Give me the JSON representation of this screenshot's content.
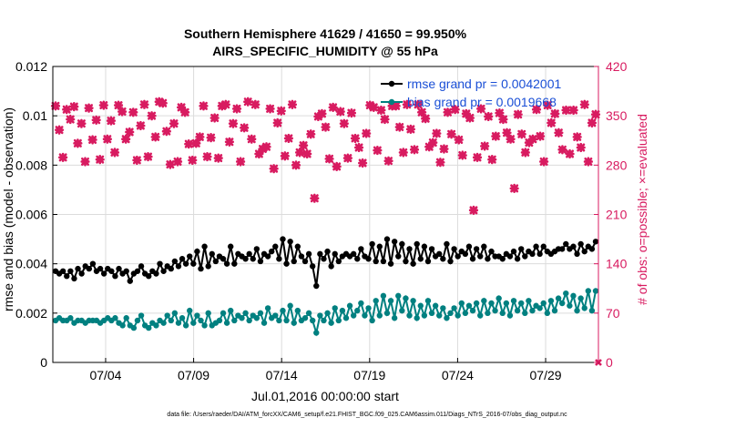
{
  "chart_data": {
    "type": "line",
    "title": "Southern Hemisphere 41629 / 41650 = 99.950%",
    "subtitle": "AIRS_SPECIFIC_HUMIDITY @ 55 hPa",
    "xlabel": "Jul.01,2016 00:00:00 start",
    "ylabel": "rmse and bias (model - observation)",
    "y2label": "# of obs: o=possible; ×=evaluated",
    "footer": "data file: /Users/raeder/DAI/ATM_forcXX/CAM6_setup/f.e21.FHIST_BGC.f09_025.CAM6assim.011/Diags_NTrS_2016-07/obs_diag_output.nc",
    "x_ticks": [
      "07/04",
      "07/09",
      "07/14",
      "07/19",
      "07/24",
      "07/29"
    ],
    "x_tick_days": [
      4,
      9,
      14,
      19,
      24,
      29
    ],
    "xlim_days": [
      1,
      32
    ],
    "ylim": [
      0,
      0.012
    ],
    "y_ticks": [
      "0",
      "0.002",
      "0.004",
      "0.006",
      "0.008",
      "0.01",
      "0.012"
    ],
    "y2lim": [
      0,
      420
    ],
    "y2_ticks": [
      "0",
      "70",
      "140",
      "210",
      "280",
      "350",
      "420"
    ],
    "grid": true,
    "legend_position": "top-right",
    "colors": {
      "rmse": "#000000",
      "bias": "#008080",
      "obs": "#d81b60",
      "legend_text": "#1a4fd6",
      "y2axis": "#d81b60"
    },
    "series": [
      {
        "name": "rmse grand pr = 0.0042001",
        "key": "rmse",
        "axis": "left",
        "values": [
          0.0037,
          0.0036,
          0.0037,
          0.0035,
          0.0037,
          0.0034,
          0.0038,
          0.0036,
          0.0039,
          0.0038,
          0.004,
          0.0037,
          0.0038,
          0.0036,
          0.0038,
          0.0037,
          0.0035,
          0.0038,
          0.0036,
          0.0037,
          0.0033,
          0.0036,
          0.0037,
          0.0039,
          0.0036,
          0.0035,
          0.0037,
          0.0036,
          0.004,
          0.0037,
          0.0039,
          0.0038,
          0.0041,
          0.0039,
          0.0042,
          0.004,
          0.0043,
          0.004,
          0.0045,
          0.0038,
          0.0047,
          0.0039,
          0.0044,
          0.0041,
          0.0043,
          0.0042,
          0.004,
          0.0047,
          0.004,
          0.0044,
          0.0043,
          0.0042,
          0.0044,
          0.0042,
          0.0046,
          0.0041,
          0.0044,
          0.0043,
          0.0045,
          0.0047,
          0.0042,
          0.005,
          0.004,
          0.0049,
          0.0041,
          0.0047,
          0.0043,
          0.0041,
          0.0044,
          0.0039,
          0.0031,
          0.0044,
          0.0042,
          0.0045,
          0.0039,
          0.0044,
          0.0041,
          0.0043,
          0.0044,
          0.0043,
          0.0044,
          0.0042,
          0.0046,
          0.0043,
          0.0042,
          0.0048,
          0.0041,
          0.0047,
          0.0041,
          0.005,
          0.004,
          0.0049,
          0.0043,
          0.0048,
          0.0041,
          0.0046,
          0.004,
          0.0048,
          0.0042,
          0.0047,
          0.0041,
          0.0046,
          0.0043,
          0.0044,
          0.0042,
          0.0048,
          0.0041,
          0.0046,
          0.0043,
          0.0045,
          0.0044,
          0.0047,
          0.0042,
          0.0046,
          0.0043,
          0.0047,
          0.0042,
          0.0045,
          0.0043,
          0.0043,
          0.0042,
          0.0044,
          0.0043,
          0.0045,
          0.0042,
          0.0046,
          0.0043,
          0.0045,
          0.0044,
          0.0047,
          0.0044,
          0.0047,
          0.0045,
          0.0044,
          0.0045,
          0.0046,
          0.0046,
          0.0048,
          0.0046,
          0.0047,
          0.0044,
          0.0048,
          0.0045,
          0.0047,
          0.0046,
          0.0049
        ]
      },
      {
        "name": "bias grand pr = 0.0019668",
        "key": "bias",
        "axis": "left",
        "values": [
          0.0017,
          0.0018,
          0.0017,
          0.0017,
          0.0018,
          0.0016,
          0.0017,
          0.0017,
          0.0016,
          0.0017,
          0.0017,
          0.0017,
          0.0016,
          0.0017,
          0.0018,
          0.0017,
          0.0018,
          0.0016,
          0.0015,
          0.0018,
          0.0015,
          0.0014,
          0.0017,
          0.0019,
          0.0015,
          0.0014,
          0.0016,
          0.0015,
          0.0017,
          0.0016,
          0.0019,
          0.0017,
          0.002,
          0.0016,
          0.0018,
          0.0015,
          0.0021,
          0.0016,
          0.0019,
          0.0017,
          0.0015,
          0.002,
          0.0015,
          0.0016,
          0.0017,
          0.002,
          0.0016,
          0.0021,
          0.0017,
          0.0019,
          0.0018,
          0.002,
          0.0017,
          0.0019,
          0.0018,
          0.002,
          0.0016,
          0.0022,
          0.0018,
          0.0019,
          0.0017,
          0.0021,
          0.0017,
          0.0023,
          0.0016,
          0.0021,
          0.0017,
          0.0018,
          0.002,
          0.0017,
          0.0012,
          0.0019,
          0.0017,
          0.002,
          0.0016,
          0.0022,
          0.0017,
          0.0021,
          0.0018,
          0.0023,
          0.0019,
          0.0021,
          0.0024,
          0.0019,
          0.0022,
          0.0017,
          0.0025,
          0.0019,
          0.0027,
          0.002,
          0.0025,
          0.0018,
          0.0027,
          0.0021,
          0.0026,
          0.0019,
          0.0025,
          0.0018,
          0.0023,
          0.0019,
          0.0025,
          0.002,
          0.0023,
          0.0019,
          0.0022,
          0.0018,
          0.002,
          0.0022,
          0.0019,
          0.0024,
          0.002,
          0.0023,
          0.0021,
          0.0024,
          0.0019,
          0.0025,
          0.002,
          0.0024,
          0.0021,
          0.0026,
          0.002,
          0.0024,
          0.0019,
          0.0025,
          0.0021,
          0.0024,
          0.002,
          0.0025,
          0.0021,
          0.0023,
          0.0022,
          0.0024,
          0.002,
          0.0025,
          0.0021,
          0.0026,
          0.0024,
          0.0028,
          0.0023,
          0.0027,
          0.0021,
          0.0026,
          0.0022,
          0.0029,
          0.0021,
          0.0029
        ]
      },
      {
        "name": "# of obs evaluated",
        "key": "obs",
        "axis": "right",
        "values": [
          364,
          330,
          291,
          359,
          345,
          363,
          311,
          339,
          285,
          361,
          316,
          344,
          288,
          365,
          317,
          343,
          298,
          365,
          356,
          317,
          327,
          355,
          287,
          336,
          366,
          292,
          350,
          320,
          370,
          368,
          328,
          281,
          339,
          285,
          362,
          355,
          310,
          287,
          311,
          320,
          364,
          292,
          319,
          347,
          290,
          364,
          366,
          313,
          339,
          360,
          285,
          333,
          370,
          317,
          366,
          296,
          303,
          306,
          360,
          275,
          340,
          357,
          293,
          318,
          366,
          280,
          298,
          308,
          296,
          324,
          233,
          349,
          353,
          334,
          289,
          362,
          278,
          356,
          339,
          290,
          354,
          318,
          305,
          283,
          325,
          365,
          362,
          301,
          358,
          345,
          286,
          364,
          364,
          334,
          298,
          366,
          331,
          302,
          366,
          355,
          346,
          306,
          312,
          325,
          284,
          303,
          355,
          324,
          359,
          316,
          294,
          353,
          347,
          216,
          291,
          360,
          307,
          349,
          288,
          321,
          354,
          345,
          326,
          317,
          247,
          352,
          324,
          298,
          312,
          317,
          359,
          321,
          285,
          365,
          340,
          353,
          326,
          302,
          358,
          296,
          358,
          320,
          305,
          366,
          285,
          340,
          352
        ]
      }
    ]
  }
}
